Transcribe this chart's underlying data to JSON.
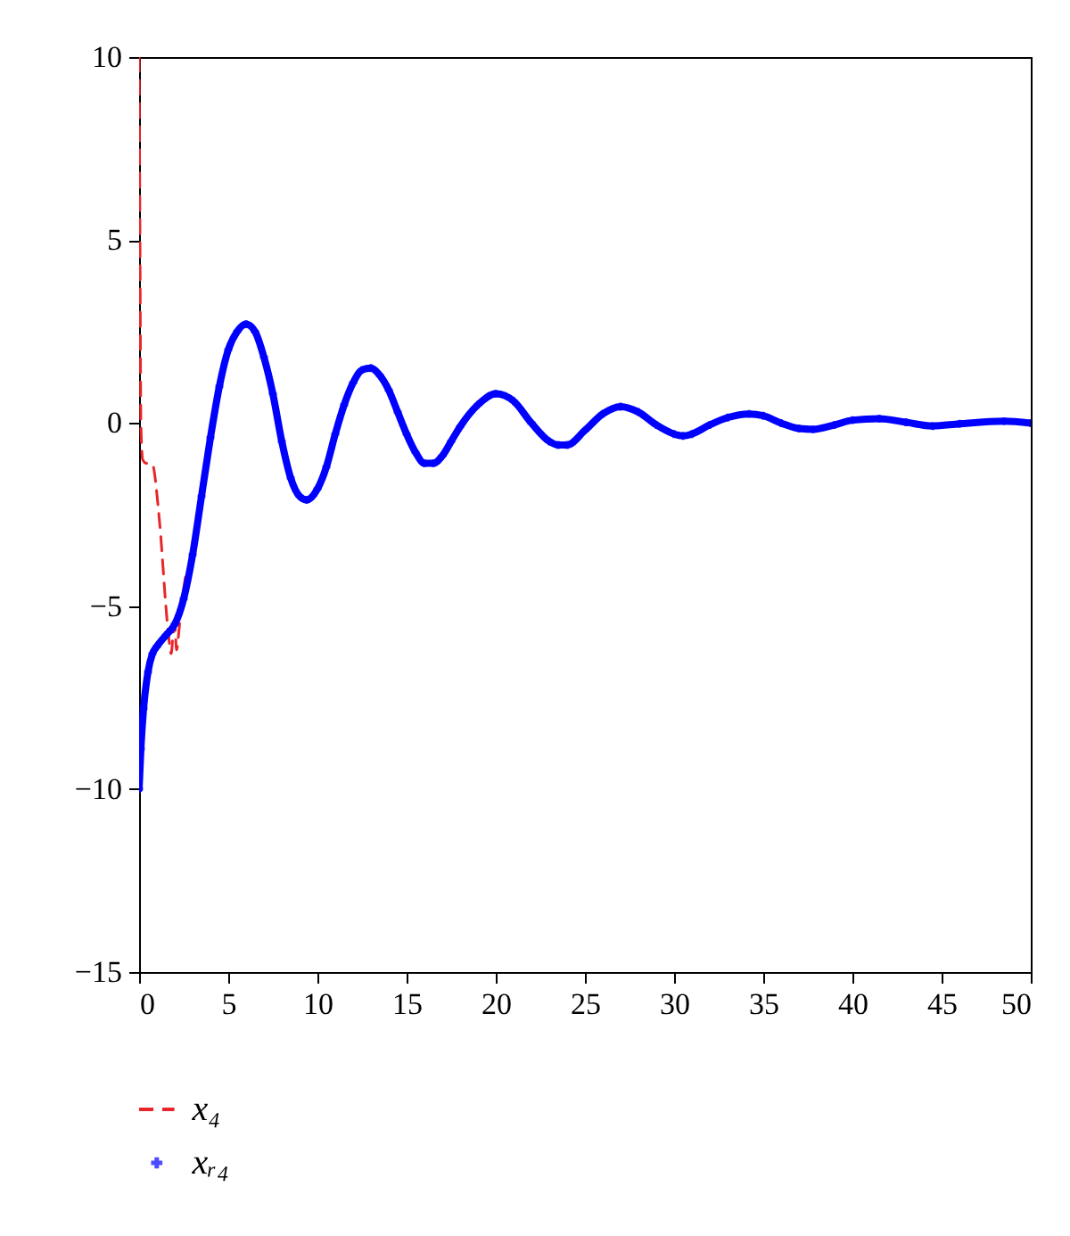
{
  "chart_data": {
    "type": "line",
    "xlim": [
      0,
      50
    ],
    "ylim": [
      -15,
      10
    ],
    "xticks": [
      0,
      5,
      10,
      15,
      20,
      25,
      30,
      35,
      40,
      45,
      50
    ],
    "yticks": [
      -15,
      -10,
      -5,
      0,
      5,
      10
    ],
    "legend": "bottom left",
    "grid": false,
    "series": [
      {
        "name": "x₄",
        "color": "#e8262a",
        "line_style": "dashed",
        "x": [
          0,
          0.05,
          0.1,
          0.2,
          0.4,
          0.6,
          0.8,
          0.9,
          1.05,
          1.2,
          1.35,
          1.5,
          1.65,
          1.8,
          1.9,
          2.0,
          2.1,
          2.25,
          2.4,
          2.6
        ],
        "values": [
          10,
          5,
          0,
          -1.0,
          -1.1,
          -1.1,
          -1.2,
          -1.5,
          -2.2,
          -3.0,
          -4.0,
          -5.0,
          -5.8,
          -6.3,
          -5.8,
          -5.5,
          -6.2,
          -5.6,
          -4.9,
          -4.2
        ]
      },
      {
        "name": "xᵣ₄",
        "color": "#0000ff",
        "marker": "cross",
        "x": [
          0,
          0.1,
          0.25,
          0.5,
          0.75,
          1,
          1.5,
          2,
          2.5,
          3,
          3.5,
          4,
          4.5,
          5,
          5.5,
          6,
          6.5,
          7,
          7.5,
          8,
          8.5,
          9,
          9.4,
          10,
          10.5,
          11,
          11.5,
          12,
          12.5,
          13,
          13.5,
          14,
          14.5,
          15,
          15.5,
          16,
          16.5,
          17,
          17.5,
          18,
          19,
          20,
          21,
          22,
          23,
          23.5,
          24,
          25,
          26,
          27,
          28,
          29,
          30,
          30.5,
          31,
          32,
          33,
          34.2,
          35,
          36,
          37,
          37.8,
          39,
          40,
          41.5,
          43,
          44.5,
          46,
          48.5,
          50
        ],
        "values": [
          -10,
          -8.9,
          -7.8,
          -6.8,
          -6.3,
          -6.1,
          -5.8,
          -5.5,
          -4.8,
          -3.6,
          -2.0,
          -0.4,
          1.0,
          2.0,
          2.5,
          2.7,
          2.5,
          1.8,
          0.8,
          -0.5,
          -1.5,
          -2.0,
          -2.1,
          -1.8,
          -1.2,
          -0.3,
          0.5,
          1.1,
          1.45,
          1.5,
          1.3,
          0.9,
          0.3,
          -0.3,
          -0.8,
          -1.1,
          -1.1,
          -0.9,
          -0.5,
          -0.1,
          0.5,
          0.8,
          0.6,
          0,
          -0.5,
          -0.6,
          -0.6,
          -0.2,
          0.25,
          0.45,
          0.3,
          -0.05,
          -0.3,
          -0.35,
          -0.3,
          -0.05,
          0.15,
          0.25,
          0.2,
          0,
          -0.15,
          -0.17,
          -0.05,
          0.08,
          0.12,
          0.02,
          -0.08,
          -0.02,
          0.05,
          0
        ]
      }
    ]
  }
}
